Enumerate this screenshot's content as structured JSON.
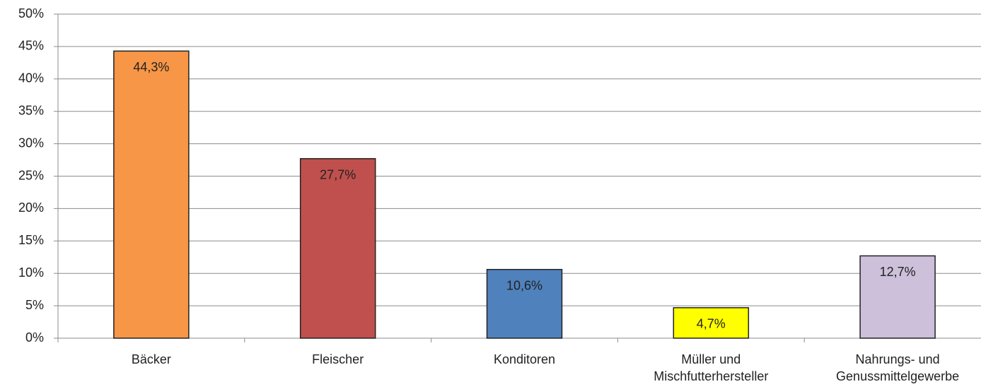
{
  "chart_data": {
    "type": "bar",
    "categories": [
      "Bäcker",
      "Fleischer",
      "Konditoren",
      "Müller und Mischfutterhersteller",
      "Nahrungs- und Genussmittelgewerbe"
    ],
    "values": [
      44.3,
      27.7,
      10.6,
      4.7,
      12.7
    ],
    "value_labels": [
      "44,3%",
      "27,7%",
      "10,6%",
      "4,7%",
      "12,7%"
    ],
    "colors": [
      "#f79646",
      "#c0504d",
      "#4f81bd",
      "#ffff00",
      "#ccc0da"
    ],
    "value_label_colors": [
      "#333333",
      "#ffffff",
      "#ffffff",
      "#333333",
      "#333333"
    ],
    "ylim": [
      0,
      50
    ],
    "yticks": [
      {
        "value": 0,
        "label": "0%"
      },
      {
        "value": 5,
        "label": "5%"
      },
      {
        "value": 10,
        "label": "10%"
      },
      {
        "value": 15,
        "label": "15%"
      },
      {
        "value": 20,
        "label": "20%"
      },
      {
        "value": 25,
        "label": "25%"
      },
      {
        "value": 30,
        "label": "30%"
      },
      {
        "value": 35,
        "label": "35%"
      },
      {
        "value": 40,
        "label": "40%"
      },
      {
        "value": 45,
        "label": "45%"
      },
      {
        "value": 50,
        "label": "50%"
      }
    ],
    "grid": true
  }
}
